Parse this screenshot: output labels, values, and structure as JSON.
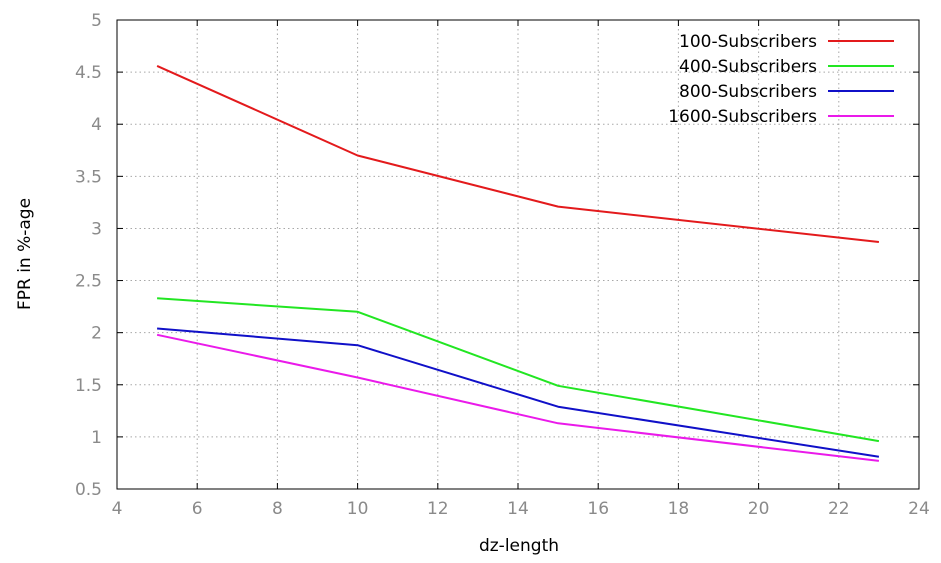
{
  "chart_data": {
    "type": "line",
    "title": "",
    "xlabel": "dz-length",
    "ylabel": "FPR in %-age",
    "xlim": [
      4,
      24
    ],
    "ylim": [
      0.5,
      5
    ],
    "xticks": [
      4,
      6,
      8,
      10,
      12,
      14,
      16,
      18,
      20,
      22,
      24
    ],
    "yticks": [
      0.5,
      1,
      1.5,
      2,
      2.5,
      3,
      3.5,
      4,
      4.5,
      5
    ],
    "xtick_labels": [
      "4",
      "6",
      "8",
      "10",
      "12",
      "14",
      "16",
      "18",
      "20",
      "22",
      "24"
    ],
    "ytick_labels": [
      "0.5",
      "1",
      "1.5",
      "2",
      "2.5",
      "3",
      "3.5",
      "4",
      "4.5",
      "5"
    ],
    "grid": true,
    "legend_position": "top-right",
    "x": [
      5,
      10,
      15,
      23
    ],
    "series": [
      {
        "name": "100-Subscribers",
        "color": "#e31a1c",
        "values": [
          4.56,
          3.7,
          3.21,
          2.87
        ]
      },
      {
        "name": "400-Subscribers",
        "color": "#22e622",
        "values": [
          2.33,
          2.2,
          1.49,
          0.96
        ]
      },
      {
        "name": "800-Subscribers",
        "color": "#1010c8",
        "values": [
          2.04,
          1.88,
          1.29,
          0.81
        ]
      },
      {
        "name": "1600-Subscribers",
        "color": "#ea1aea",
        "values": [
          1.98,
          1.57,
          1.13,
          0.77
        ]
      }
    ]
  }
}
